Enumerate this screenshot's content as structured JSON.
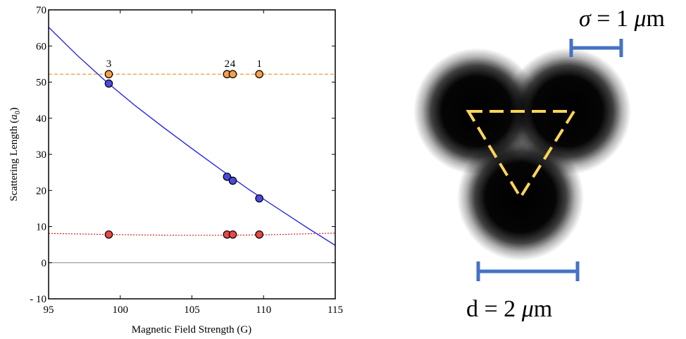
{
  "chart_data": {
    "type": "scatter",
    "xlabel": "Magnetic Field Strength (G)",
    "ylabel_main": "Scattering Length (",
    "ylabel_sym": "a",
    "ylabel_sub": "0",
    "ylabel_end": ")",
    "xlim": [
      95,
      115
    ],
    "ylim": [
      -10,
      70
    ],
    "x_ticks": [
      95,
      100,
      105,
      110,
      115
    ],
    "y_ticks": [
      -10,
      0,
      10,
      20,
      30,
      40,
      50,
      60,
      70
    ],
    "y_tick_labels": [
      "- 10",
      "0",
      "10",
      "20",
      "30",
      "40",
      "50",
      "60",
      "70"
    ],
    "zero_line": 0,
    "grid": false,
    "colors": {
      "orange": "#f5a04a",
      "orange_line": "#e3a12f",
      "blue": "#4a4ae0",
      "blue_line": "#1a1af0",
      "red": "#e84848",
      "red_line": "#e02020",
      "scale_bar": "#4472c4",
      "triangle": "#ffd45a"
    },
    "series": [
      {
        "style": "orange",
        "points": [
          [
            99.2,
            52.2
          ],
          [
            107.45,
            52.2
          ],
          [
            107.85,
            52.2
          ],
          [
            109.7,
            52.2
          ]
        ],
        "line": {
          "kind": "dashed",
          "points": [
            [
              95,
              52.2
            ],
            [
              115,
              52.2
            ]
          ]
        }
      },
      {
        "style": "blue",
        "points": [
          [
            99.2,
            49.6
          ],
          [
            107.45,
            23.8
          ],
          [
            107.85,
            22.7
          ],
          [
            109.7,
            17.8
          ]
        ],
        "line": {
          "kind": "solid",
          "points": [
            [
              95,
              65.2
            ],
            [
              97,
              57.4
            ],
            [
              99,
              50.2
            ],
            [
              101,
              43.6
            ],
            [
              103,
              37.5
            ],
            [
              105,
              31.6
            ],
            [
              107,
              25.8
            ],
            [
              109,
              20.2
            ],
            [
              111,
              15.0
            ],
            [
              113,
              9.8
            ],
            [
              115,
              4.8
            ]
          ]
        }
      },
      {
        "style": "red",
        "points": [
          [
            99.2,
            7.8
          ],
          [
            107.45,
            7.8
          ],
          [
            107.85,
            7.8
          ],
          [
            109.7,
            7.8
          ]
        ],
        "line": {
          "kind": "dotted",
          "points": [
            [
              95,
              8.1
            ],
            [
              98,
              7.9
            ],
            [
              101,
              7.7
            ],
            [
              104,
              7.6
            ],
            [
              107,
              7.6
            ],
            [
              110,
              7.7
            ],
            [
              113,
              8.0
            ],
            [
              115,
              8.2
            ]
          ]
        }
      }
    ],
    "annotations": [
      {
        "text": "3",
        "x": 99.2,
        "y": 52.2
      },
      {
        "text": "2",
        "x": 107.45,
        "y": 52.2
      },
      {
        "text": "4",
        "x": 107.85,
        "y": 52.2
      },
      {
        "text": "1",
        "x": 109.7,
        "y": 52.2
      }
    ]
  },
  "diagram": {
    "sigma_label_sym": "σ",
    "sigma_label_rest": " = 1 ",
    "sigma_label_mu": "μ",
    "sigma_label_unit": "m",
    "d_label_pre": "d = 2 ",
    "d_label_mu": "μ",
    "d_label_unit": "m"
  }
}
